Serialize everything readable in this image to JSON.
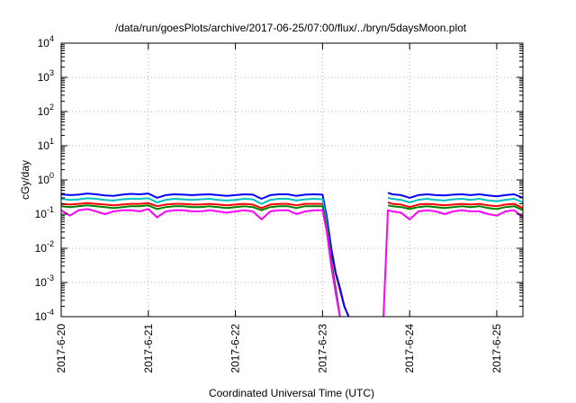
{
  "chart_data": {
    "type": "line",
    "title": "/data/run/goesPlots/archive/2017-06-25/07:00/flux/../bryn/5daysMoon.plot",
    "xlabel": "Coordinated Universal Time (UTC)",
    "ylabel": "cGy/day",
    "yscale": "log",
    "ylim": [
      0.0001,
      10000
    ],
    "xlim": [
      0,
      5.3
    ],
    "x_unit": "days since 2017-6-20 00:00 UTC",
    "grid": true,
    "legend": "none",
    "x_ticks": [
      {
        "x": 0,
        "label": "2017-6-20"
      },
      {
        "x": 1,
        "label": "2017-6-21"
      },
      {
        "x": 2,
        "label": "2017-6-22"
      },
      {
        "x": 3,
        "label": "2017-6-23"
      },
      {
        "x": 4,
        "label": "2017-6-24"
      },
      {
        "x": 5,
        "label": "2017-6-25"
      }
    ],
    "y_ticks": [
      {
        "v": 0.0001,
        "base": "10",
        "exp": "-4"
      },
      {
        "v": 0.001,
        "base": "10",
        "exp": "-3"
      },
      {
        "v": 0.01,
        "base": "10",
        "exp": "-2"
      },
      {
        "v": 0.1,
        "base": "10",
        "exp": "-1"
      },
      {
        "v": 1,
        "base": "10",
        "exp": "0"
      },
      {
        "v": 10,
        "base": "10",
        "exp": "1"
      },
      {
        "v": 100,
        "base": "10",
        "exp": "2"
      },
      {
        "v": 1000,
        "base": "10",
        "exp": "3"
      },
      {
        "v": 10000,
        "base": "10",
        "exp": "4"
      }
    ],
    "x": [
      0.0,
      0.1,
      0.2,
      0.3,
      0.4,
      0.5,
      0.6,
      0.7,
      0.8,
      0.9,
      1.0,
      1.1,
      1.2,
      1.3,
      1.4,
      1.5,
      1.6,
      1.7,
      1.8,
      1.9,
      2.0,
      2.1,
      2.2,
      2.3,
      2.4,
      2.5,
      2.6,
      2.7,
      2.8,
      2.9,
      3.0,
      3.05,
      3.1,
      3.15,
      3.2,
      3.25,
      3.3,
      3.35,
      3.4,
      3.45,
      3.5,
      3.7,
      3.75,
      3.8,
      3.9,
      4.0,
      4.1,
      4.2,
      4.3,
      4.4,
      4.5,
      4.6,
      4.7,
      4.8,
      4.9,
      5.0,
      5.1,
      5.2,
      5.3
    ],
    "series": [
      {
        "color": "#ff0000",
        "values": [
          0.2,
          0.19,
          0.2,
          0.21,
          0.2,
          0.19,
          0.18,
          0.19,
          0.2,
          0.2,
          0.21,
          0.17,
          0.19,
          0.2,
          0.2,
          0.19,
          0.19,
          0.2,
          0.19,
          0.18,
          0.19,
          0.2,
          0.19,
          0.15,
          0.19,
          0.2,
          0.2,
          0.18,
          0.2,
          0.2,
          0.2,
          0.06,
          0.008,
          0.0018,
          0.0006,
          0.0002,
          0.0001,
          null,
          null,
          null,
          null,
          null,
          0.22,
          0.2,
          0.19,
          0.16,
          0.19,
          0.2,
          0.19,
          0.18,
          0.19,
          0.2,
          0.19,
          0.2,
          0.18,
          0.17,
          0.19,
          0.2,
          0.15
        ]
      },
      {
        "color": "#0000ff",
        "values": [
          0.38,
          0.36,
          0.37,
          0.4,
          0.38,
          0.35,
          0.34,
          0.37,
          0.39,
          0.38,
          0.4,
          0.3,
          0.36,
          0.38,
          0.37,
          0.36,
          0.37,
          0.38,
          0.36,
          0.34,
          0.36,
          0.38,
          0.37,
          0.28,
          0.36,
          0.38,
          0.38,
          0.34,
          0.37,
          0.38,
          0.37,
          0.08,
          0.01,
          0.002,
          0.0007,
          0.0002,
          0.0001,
          null,
          null,
          null,
          null,
          null,
          0.42,
          0.38,
          0.36,
          0.3,
          0.36,
          0.38,
          0.36,
          0.35,
          0.37,
          0.38,
          0.36,
          0.38,
          0.35,
          0.33,
          0.36,
          0.38,
          0.3
        ]
      },
      {
        "color": "#00c0c0",
        "values": [
          0.28,
          0.26,
          0.27,
          0.29,
          0.28,
          0.26,
          0.25,
          0.27,
          0.28,
          0.28,
          0.29,
          0.22,
          0.26,
          0.28,
          0.27,
          0.26,
          0.27,
          0.28,
          0.26,
          0.25,
          0.26,
          0.28,
          0.27,
          0.2,
          0.26,
          0.28,
          0.28,
          0.25,
          0.27,
          0.28,
          0.27,
          0.05,
          0.004,
          0.0007,
          0.0001,
          null,
          null,
          null,
          null,
          null,
          null,
          null,
          0.3,
          0.28,
          0.26,
          0.22,
          0.26,
          0.28,
          0.26,
          0.25,
          0.27,
          0.28,
          0.26,
          0.28,
          0.25,
          0.24,
          0.26,
          0.28,
          0.22
        ]
      },
      {
        "color": "#008000",
        "values": [
          0.17,
          0.16,
          0.17,
          0.18,
          0.17,
          0.16,
          0.15,
          0.16,
          0.17,
          0.17,
          0.18,
          0.14,
          0.16,
          0.17,
          0.17,
          0.16,
          0.16,
          0.17,
          0.16,
          0.15,
          0.16,
          0.17,
          0.16,
          0.13,
          0.16,
          0.17,
          0.17,
          0.15,
          0.17,
          0.17,
          0.17,
          0.04,
          0.004,
          0.0007,
          0.0001,
          null,
          null,
          null,
          null,
          null,
          null,
          null,
          0.18,
          0.17,
          0.16,
          0.14,
          0.16,
          0.17,
          0.16,
          0.15,
          0.16,
          0.17,
          0.16,
          0.17,
          0.15,
          0.14,
          0.16,
          0.17,
          0.13
        ]
      },
      {
        "color": "#ff00ff",
        "values": [
          0.13,
          0.09,
          0.13,
          0.14,
          0.12,
          0.1,
          0.12,
          0.13,
          0.13,
          0.12,
          0.14,
          0.08,
          0.12,
          0.13,
          0.13,
          0.12,
          0.12,
          0.13,
          0.12,
          0.11,
          0.12,
          0.13,
          0.12,
          0.07,
          0.12,
          0.13,
          0.13,
          0.1,
          0.12,
          0.13,
          0.13,
          0.03,
          0.003,
          0.0005,
          0.0001,
          null,
          null,
          null,
          null,
          null,
          null,
          0.0001,
          0.13,
          0.12,
          0.11,
          0.07,
          0.12,
          0.13,
          0.12,
          0.1,
          0.12,
          0.13,
          0.12,
          0.12,
          0.1,
          0.09,
          0.12,
          0.13,
          0.08
        ]
      }
    ]
  }
}
